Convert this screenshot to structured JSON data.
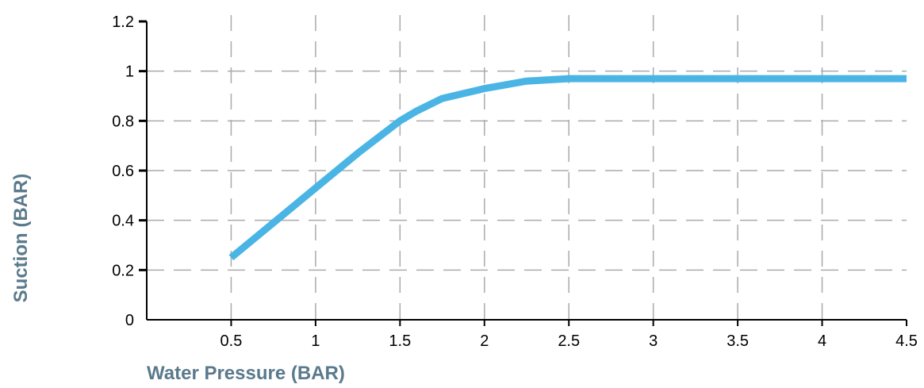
{
  "chart_data": {
    "type": "line",
    "xlabel": "Water Pressure (BAR)",
    "ylabel": "Suction (BAR)",
    "xlim": [
      0,
      4.5
    ],
    "ylim": [
      0,
      1.2
    ],
    "x_ticks": [
      0.5,
      1,
      1.5,
      2,
      2.5,
      3,
      3.5,
      4,
      4.5
    ],
    "x_tick_labels": [
      "0.5",
      "1",
      "1.5",
      "2",
      "2.5",
      "3",
      "3.5",
      "4",
      "4.5"
    ],
    "y_ticks": [
      0,
      0.2,
      0.4,
      0.6,
      0.8,
      1,
      1.2
    ],
    "y_tick_labels": [
      "0",
      "0.2",
      "0.4",
      "0.6",
      "0.8",
      "1",
      "1.2"
    ],
    "grid": true,
    "legend": "none",
    "series": [
      {
        "color": "#4ab5e5",
        "x": [
          0.5,
          0.75,
          1.0,
          1.25,
          1.5,
          1.6,
          1.75,
          2.0,
          2.25,
          2.5,
          3.0,
          3.5,
          4.0,
          4.5
        ],
        "y": [
          0.25,
          0.39,
          0.53,
          0.67,
          0.8,
          0.84,
          0.89,
          0.93,
          0.96,
          0.97,
          0.97,
          0.97,
          0.97,
          0.97
        ]
      }
    ],
    "colors": {
      "line": "#4ab5e5",
      "axis_title": "#5a7a8c",
      "grid": "#aaaaaa",
      "axis": "#000000"
    }
  }
}
